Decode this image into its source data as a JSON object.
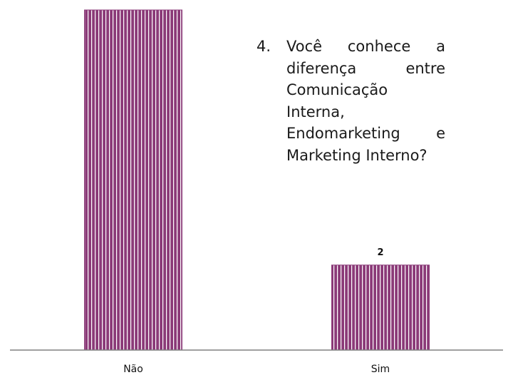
{
  "chart_data": {
    "type": "bar",
    "title": "4. Você conhece a diferença entre Comunicação Interna, Endomarketing e Marketing Interno?",
    "question_number": "4.",
    "question_text": "Você conhece a diferença entre Comunicação Interna, Endomarketing e Marketing Interno?",
    "categories": [
      "Não",
      "Sim"
    ],
    "values": [
      8,
      2
    ],
    "data_labels": [
      "",
      "2"
    ],
    "bar_color": "#8b3a78",
    "stripe_color": "#ffffff",
    "axis_color": "#808080",
    "xlabel": "",
    "ylabel": "",
    "ylim": [
      0,
      8
    ],
    "grid": false,
    "legend": "none"
  }
}
